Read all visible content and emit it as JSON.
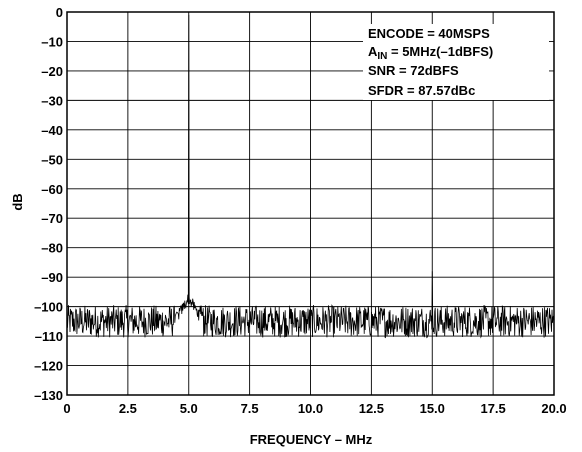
{
  "chart_data": {
    "type": "line",
    "title": "",
    "xlabel": "FREQUENCY – MHz",
    "ylabel": "dB",
    "xlim": [
      0,
      20
    ],
    "ylim": [
      -130,
      0
    ],
    "grid": true,
    "x_ticks": [
      "0",
      "2.5",
      "5.0",
      "7.5",
      "10.0",
      "12.5",
      "15.0",
      "17.5",
      "20.0"
    ],
    "y_ticks": [
      "0",
      "–10",
      "–20",
      "–30",
      "–40",
      "–50",
      "–60",
      "–70",
      "–80",
      "–90",
      "–100",
      "–110",
      "–120",
      "–130"
    ],
    "x_tick_values": [
      0,
      2.5,
      5.0,
      7.5,
      10.0,
      12.5,
      15.0,
      17.5,
      20.0
    ],
    "y_tick_values": [
      0,
      -10,
      -20,
      -30,
      -40,
      -50,
      -60,
      -70,
      -80,
      -90,
      -100,
      -110,
      -120,
      -130
    ],
    "annotations": {
      "line1": "ENCODE = 40MSPS",
      "line2_main": "A",
      "line2_sub": "IN",
      "line2_rest": " = 5MHz(–1dBFS)",
      "line3": "SNR = 72dBFS",
      "line4": "SFDR = 87.57dBc"
    },
    "series": [
      {
        "noise_floor": -105,
        "noise_range": [
          -112,
          -99
        ],
        "x": [
          0,
          4.5,
          4.8,
          4.95,
          5.0,
          5.05,
          5.2,
          5.5,
          15.0,
          20.0
        ],
        "y": [
          -105,
          -103,
          -100,
          -97,
          -1,
          -97,
          -100,
          -103,
          -88,
          -105
        ]
      }
    ]
  }
}
